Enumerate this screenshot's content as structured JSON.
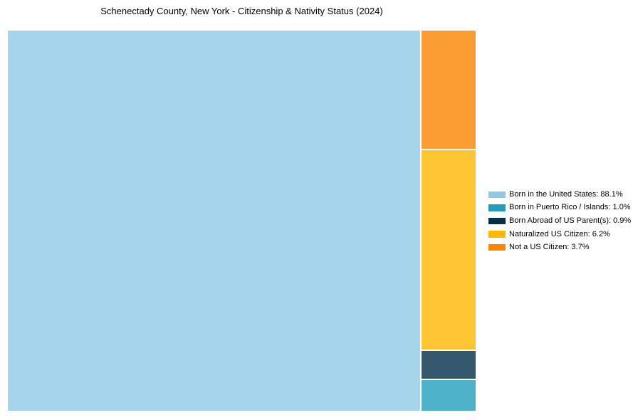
{
  "title": "Schenectady County, New York - Citizenship & Nativity Status (2024)",
  "chart_data": {
    "type": "treemap",
    "title": "Schenectady County, New York - Citizenship & Nativity Status (2024)",
    "categories": [
      "Born in the United States",
      "Born in Puerto Rico / Islands",
      "Born Abroad of US Parent(s)",
      "Naturalized US Citizen",
      "Not a US Citizen"
    ],
    "values": [
      88.1,
      1.0,
      0.9,
      6.2,
      3.7
    ],
    "colors": [
      "#8ECAE6",
      "#219EBC",
      "#023047",
      "#FFB703",
      "#FB8500"
    ],
    "tile_fill_opacity": 0.8,
    "layout": {
      "main_tile_index": 0,
      "right_column_order_top_to_bottom": [
        4,
        3,
        2,
        1
      ],
      "legend_position": "right",
      "grid": false
    },
    "legend_entries": [
      "Born in the United States: 88.1%",
      "Born in Puerto Rico / Islands: 1.0%",
      "Born Abroad of US Parent(s): 0.9%",
      "Naturalized US Citizen: 6.2%",
      "Not a US Citizen: 3.7%"
    ]
  }
}
